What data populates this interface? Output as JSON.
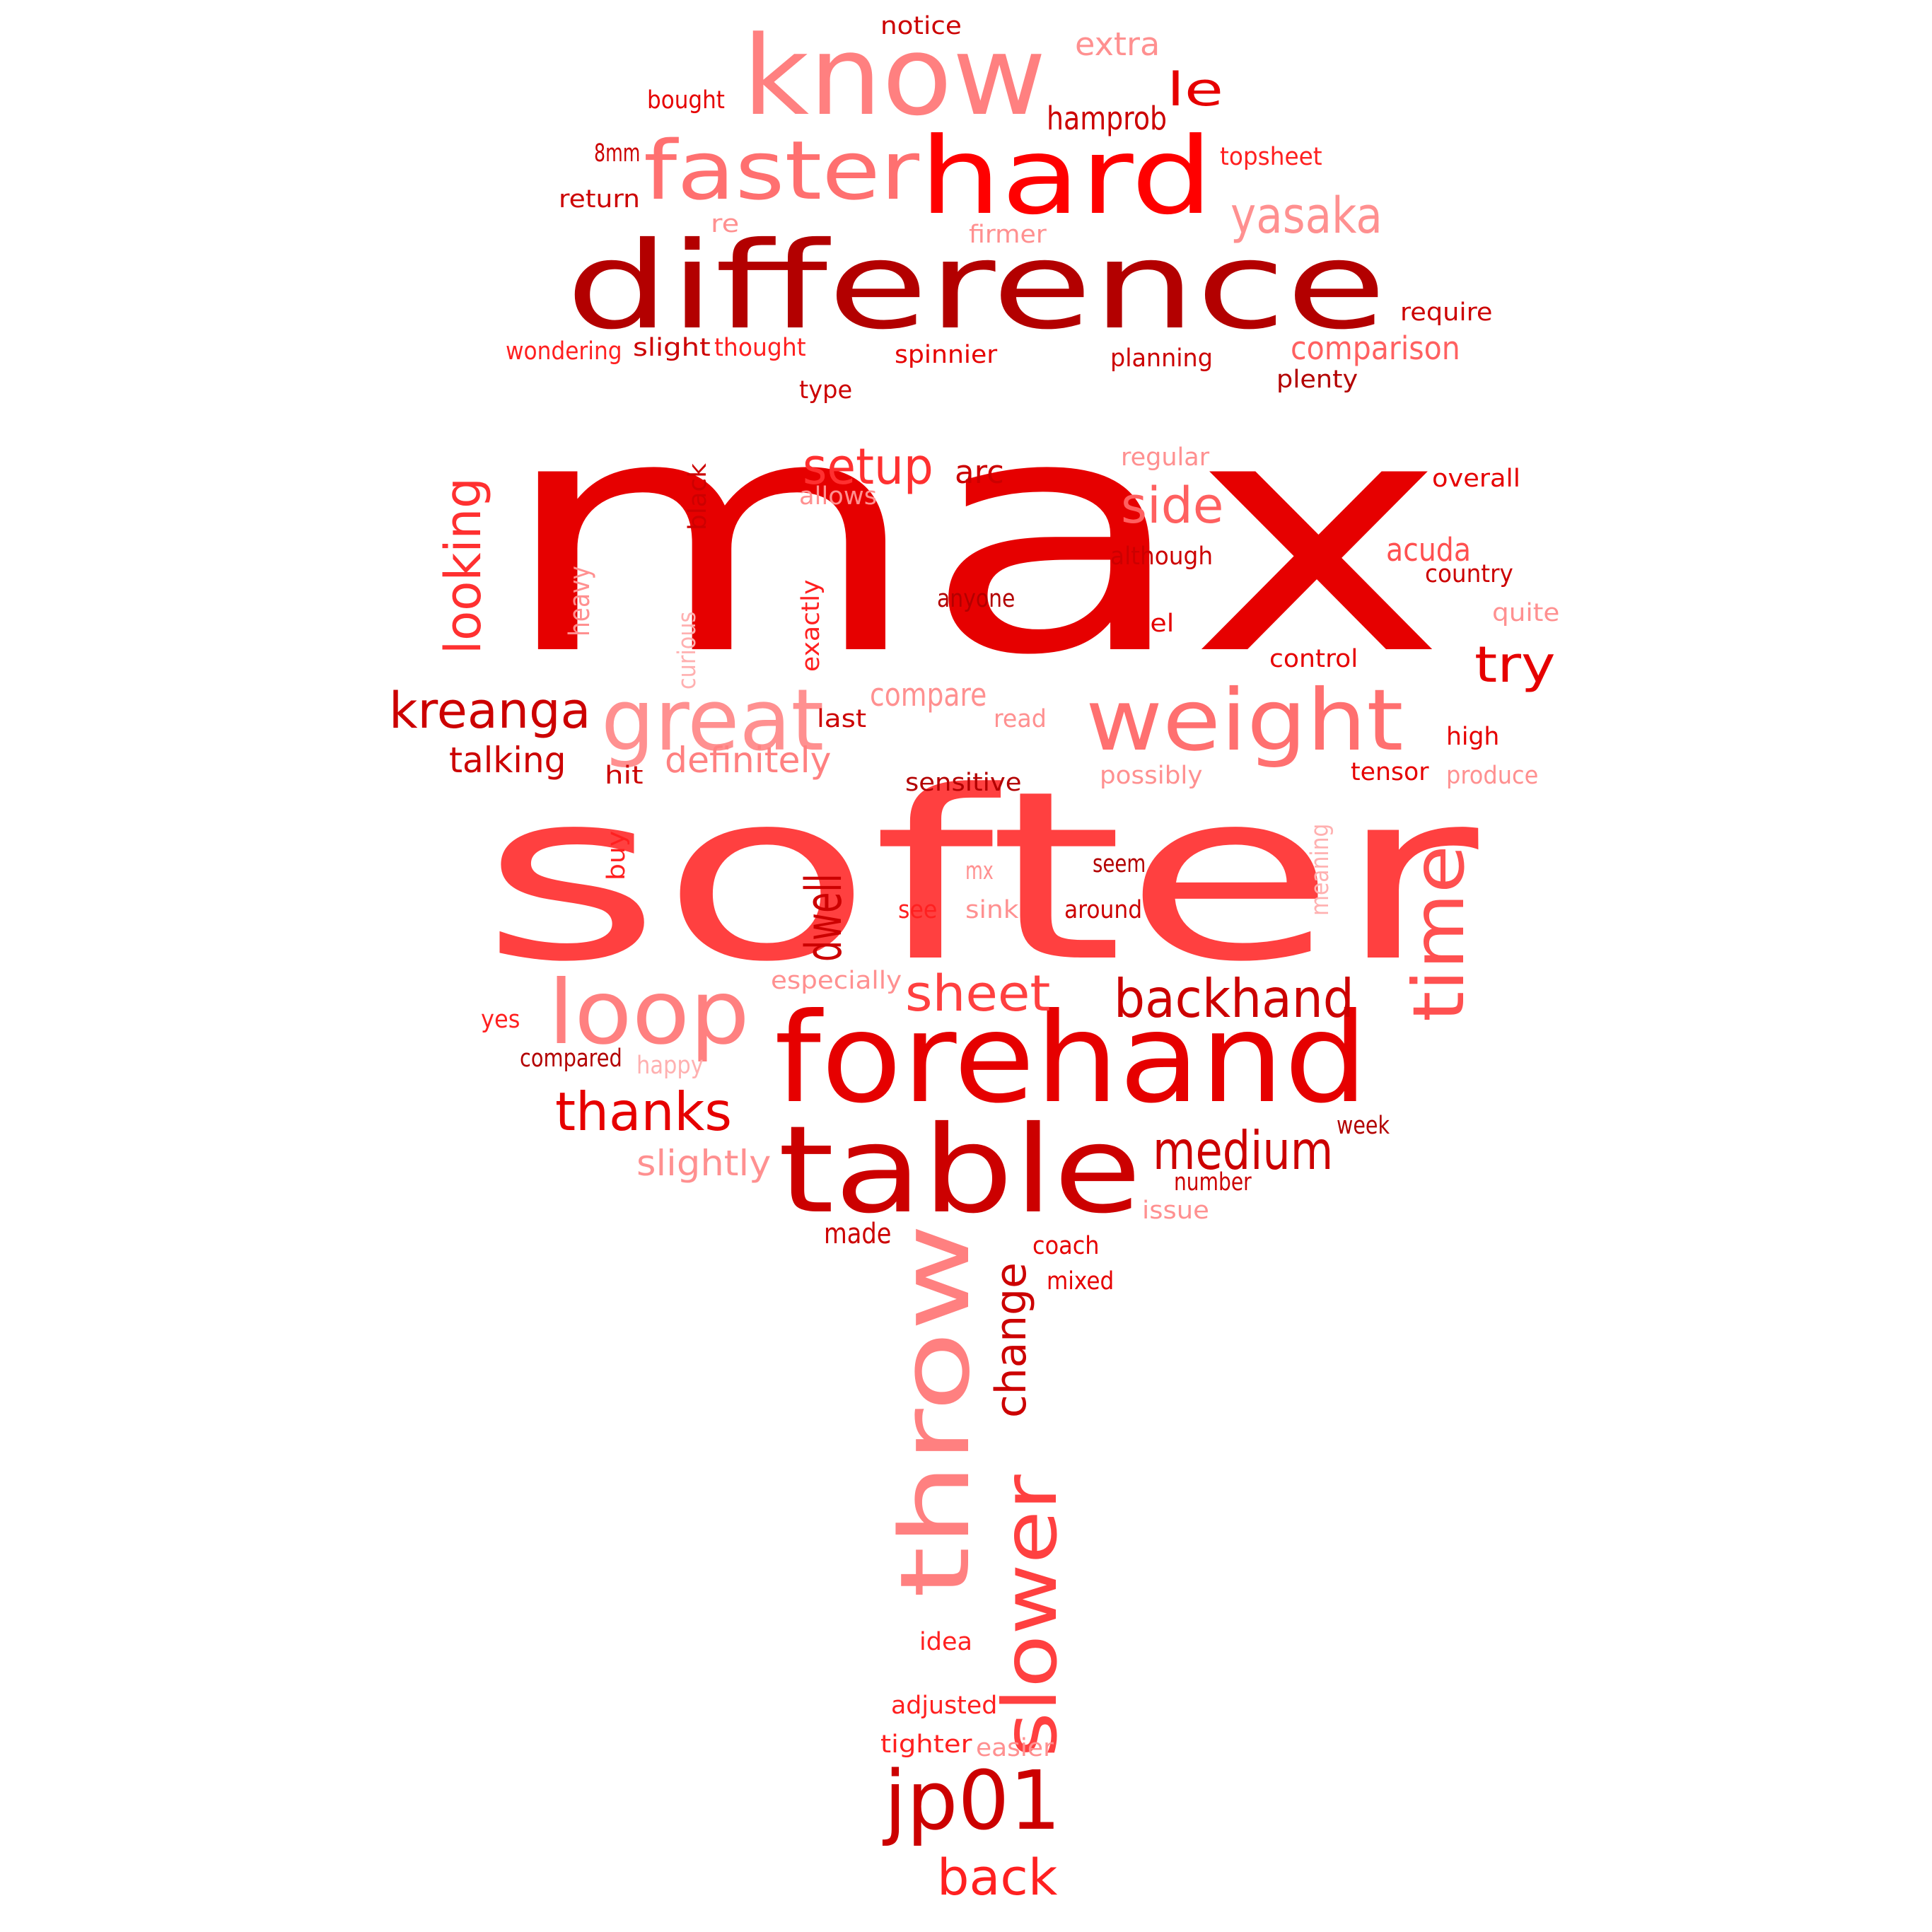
{
  "words": [
    {
      "t": "max",
      "c": "#e60000"
    },
    {
      "t": "softer",
      "c": "#ff4040"
    },
    {
      "t": "difference",
      "c": "#b30000"
    },
    {
      "t": "forehand",
      "c": "#e60000"
    },
    {
      "t": "table",
      "c": "#cc0000"
    },
    {
      "t": "know",
      "c": "#ff8080"
    },
    {
      "t": "hard",
      "c": "#ff0000"
    },
    {
      "t": "throw",
      "c": "#ff8080"
    },
    {
      "t": "weight",
      "c": "#ff7070"
    },
    {
      "t": "faster",
      "c": "#ff7070"
    },
    {
      "t": "loop",
      "c": "#ff8080"
    },
    {
      "t": "great",
      "c": "#ff9090"
    },
    {
      "t": "jp01",
      "c": "#cc0000"
    },
    {
      "t": "slower",
      "c": "#ff4040"
    },
    {
      "t": "time",
      "c": "#ff5050"
    },
    {
      "t": "kreanga",
      "c": "#cc0000"
    },
    {
      "t": "backhand",
      "c": "#cc0000"
    },
    {
      "t": "looking",
      "c": "#ff3030"
    },
    {
      "t": "thanks",
      "c": "#e60000"
    },
    {
      "t": "sheet",
      "c": "#ff4040"
    },
    {
      "t": "medium",
      "c": "#cc0000"
    },
    {
      "t": "dwell",
      "c": "#cc0000"
    },
    {
      "t": "change",
      "c": "#cc0000"
    },
    {
      "t": "setup",
      "c": "#ff3030"
    },
    {
      "t": "yasaka",
      "c": "#ff9090"
    },
    {
      "t": "side",
      "c": "#ff6060"
    },
    {
      "t": "back",
      "c": "#ff2020"
    },
    {
      "t": "try",
      "c": "#e60000"
    },
    {
      "t": "le",
      "c": "#e60000"
    },
    {
      "t": "comparison",
      "c": "#ff6060"
    },
    {
      "t": "definitely",
      "c": "#ff8080"
    },
    {
      "t": "talking",
      "c": "#cc0000"
    },
    {
      "t": "slightly",
      "c": "#ff9090"
    },
    {
      "t": "acuda",
      "c": "#ff5050"
    },
    {
      "t": "hamprob",
      "c": "#cc0000"
    },
    {
      "t": "arc",
      "c": "#cc0000"
    },
    {
      "t": "extra",
      "c": "#ff9090"
    },
    {
      "t": "compare",
      "c": "#ff9090"
    },
    {
      "t": "notice",
      "c": "#cc0000"
    },
    {
      "t": "bought",
      "c": "#e60000"
    },
    {
      "t": "8mm",
      "c": "#cc0000"
    },
    {
      "t": "topsheet",
      "c": "#ff2020"
    },
    {
      "t": "return",
      "c": "#cc0000"
    },
    {
      "t": "re",
      "c": "#ff9090"
    },
    {
      "t": "firmer",
      "c": "#ff9090"
    },
    {
      "t": "require",
      "c": "#cc0000"
    },
    {
      "t": "wondering",
      "c": "#ff2020"
    },
    {
      "t": "slight",
      "c": "#cc0000"
    },
    {
      "t": "thought",
      "c": "#ff2020"
    },
    {
      "t": "spinnier",
      "c": "#e60000"
    },
    {
      "t": "planning",
      "c": "#cc0000"
    },
    {
      "t": "plenty",
      "c": "#b30000"
    },
    {
      "t": "type",
      "c": "#cc0000"
    },
    {
      "t": "regular",
      "c": "#ff9090"
    },
    {
      "t": "overall",
      "c": "#e60000"
    },
    {
      "t": "allows",
      "c": "#ff9090"
    },
    {
      "t": "black",
      "c": "#cc0000"
    },
    {
      "t": "although",
      "c": "#cc0000"
    },
    {
      "t": "country",
      "c": "#cc0000"
    },
    {
      "t": "heavy",
      "c": "#ff9090"
    },
    {
      "t": "anyone",
      "c": "#b30000"
    },
    {
      "t": "quite",
      "c": "#ff9090"
    },
    {
      "t": "level",
      "c": "#e60000"
    },
    {
      "t": "curious",
      "c": "#ffb0b0"
    },
    {
      "t": "exactly",
      "c": "#ff2020"
    },
    {
      "t": "control",
      "c": "#e60000"
    },
    {
      "t": "last",
      "c": "#cc0000"
    },
    {
      "t": "read",
      "c": "#ff9090"
    },
    {
      "t": "high",
      "c": "#e60000"
    },
    {
      "t": "hit",
      "c": "#cc0000"
    },
    {
      "t": "sensitive",
      "c": "#b30000"
    },
    {
      "t": "possibly",
      "c": "#ff9090"
    },
    {
      "t": "tensor",
      "c": "#e60000"
    },
    {
      "t": "produce",
      "c": "#ff9090"
    },
    {
      "t": "buy",
      "c": "#ff2020"
    },
    {
      "t": "mx",
      "c": "#ff9090"
    },
    {
      "t": "seem",
      "c": "#b30000"
    },
    {
      "t": "meaning",
      "c": "#ffb0b0"
    },
    {
      "t": "see",
      "c": "#ff2020"
    },
    {
      "t": "sink",
      "c": "#ff9090"
    },
    {
      "t": "around",
      "c": "#cc0000"
    },
    {
      "t": "especially",
      "c": "#ff9090"
    },
    {
      "t": "yes",
      "c": "#ff2020"
    },
    {
      "t": "compared",
      "c": "#b30000"
    },
    {
      "t": "happy",
      "c": "#ffb0b0"
    },
    {
      "t": "week",
      "c": "#b30000"
    },
    {
      "t": "number",
      "c": "#cc0000"
    },
    {
      "t": "issue",
      "c": "#ff9090"
    },
    {
      "t": "made",
      "c": "#cc0000"
    },
    {
      "t": "coach",
      "c": "#e60000"
    },
    {
      "t": "mixed",
      "c": "#e60000"
    },
    {
      "t": "idea",
      "c": "#ff2020"
    },
    {
      "t": "adjusted",
      "c": "#ff2020"
    },
    {
      "t": "tighter",
      "c": "#ff2020"
    },
    {
      "t": "easier",
      "c": "#ff9090"
    }
  ]
}
